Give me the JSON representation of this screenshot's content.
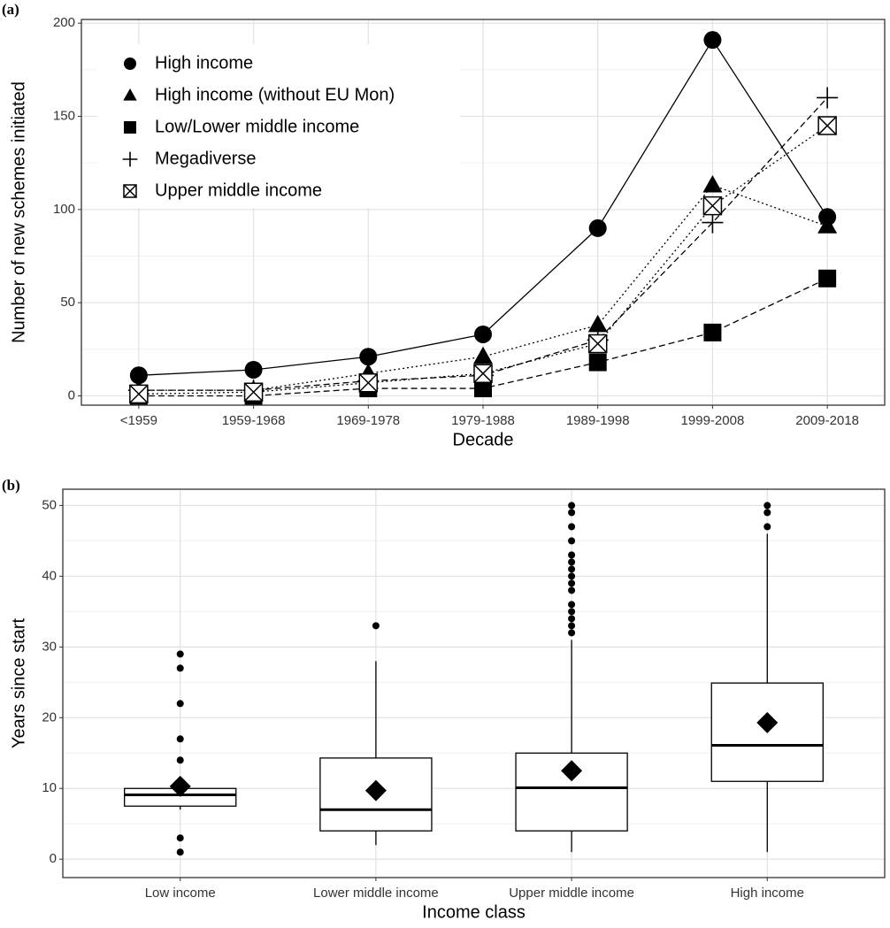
{
  "chart_data": [
    {
      "type": "line",
      "panel_label": "(a)",
      "x_label": "Decade",
      "y_label": "Number of new schemes initiated",
      "categories": [
        "<1959",
        "1959-1968",
        "1969-1978",
        "1979-1988",
        "1989-1998",
        "1999-2008",
        "2009-2018"
      ],
      "series": [
        {
          "name": "High income",
          "marker": "circle",
          "linestyle": "solid",
          "color": "#000000",
          "values": [
            11,
            14,
            21,
            33,
            90,
            191,
            96
          ]
        },
        {
          "name": "High income (without EU Mon)",
          "marker": "triangle",
          "linestyle": "dotted",
          "color": "#000000",
          "values": [
            3,
            3,
            12,
            21,
            38,
            113,
            91
          ]
        },
        {
          "name": "Low/Lower middle income",
          "marker": "square",
          "linestyle": "dashed",
          "color": "#000000",
          "values": [
            0,
            0,
            4,
            4,
            18,
            34,
            63
          ]
        },
        {
          "name": "Megadiverse",
          "marker": "plus",
          "linestyle": "dashed",
          "color": "#000000",
          "values": [
            3,
            3,
            8,
            11,
            30,
            93,
            160
          ]
        },
        {
          "name": "Upper middle income",
          "marker": "boxx",
          "linestyle": "dotted",
          "color": "#000000",
          "values": [
            1,
            2,
            7,
            12,
            28,
            102,
            145
          ]
        }
      ],
      "ylim": [
        -5,
        202
      ],
      "yticks": [
        0,
        50,
        100,
        150,
        200
      ],
      "grid": true,
      "legend": "top-left"
    },
    {
      "type": "box",
      "panel_label": "(b)",
      "x_label": "Income class",
      "y_label": "Years since start",
      "categories": [
        "Low income",
        "Lower middle income",
        "Upper middle income",
        "High income"
      ],
      "boxes": [
        {
          "whisker_low": 7,
          "q1": 7.5,
          "median": 9.1,
          "q3": 10,
          "whisker_high": 10.5,
          "mean": 10.3,
          "outliers": [
            29,
            27,
            22,
            17,
            14,
            3,
            1
          ]
        },
        {
          "whisker_low": 2,
          "q1": 4,
          "median": 7,
          "q3": 14.3,
          "whisker_high": 28,
          "mean": 9.7,
          "outliers": [
            33
          ]
        },
        {
          "whisker_low": 1,
          "q1": 4,
          "median": 10.1,
          "q3": 15,
          "whisker_high": 31,
          "mean": 12.5,
          "outliers": [
            32,
            33,
            34,
            35,
            36,
            38,
            39,
            40,
            41,
            42,
            43,
            45,
            47,
            49,
            50
          ]
        },
        {
          "whisker_low": 1,
          "q1": 11,
          "median": 16.1,
          "q3": 24.9,
          "whisker_high": 46,
          "mean": 19.3,
          "outliers": [
            47,
            49,
            50
          ]
        }
      ],
      "color": "#000000",
      "ylim": [
        -2.6,
        52.3
      ],
      "yticks": [
        0,
        10,
        20,
        30,
        40,
        50
      ],
      "grid": true
    }
  ]
}
